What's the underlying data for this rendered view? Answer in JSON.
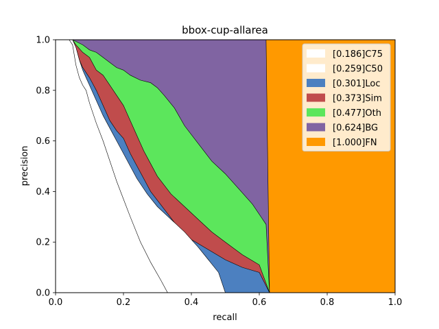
{
  "chart_data": {
    "type": "area",
    "title": "bbox-cup-allarea",
    "xlabel": "recall",
    "ylabel": "precision",
    "xlim": [
      0,
      1
    ],
    "ylim": [
      0,
      1
    ],
    "xticks": [
      "0.0",
      "0.2",
      "0.4",
      "0.6",
      "0.8",
      "1.0"
    ],
    "yticks": [
      "0.0",
      "0.2",
      "0.4",
      "0.6",
      "0.8",
      "1.0"
    ],
    "grid": false,
    "legend_position": "top-right",
    "series": [
      {
        "name": "[0.186]C75",
        "color": "#ffffff",
        "points": [
          [
            0.0,
            1.0
          ],
          [
            0.04,
            1.0
          ],
          [
            0.05,
            0.98
          ],
          [
            0.06,
            0.9
          ],
          [
            0.07,
            0.85
          ],
          [
            0.08,
            0.82
          ],
          [
            0.09,
            0.8
          ],
          [
            0.1,
            0.75
          ],
          [
            0.12,
            0.67
          ],
          [
            0.14,
            0.6
          ],
          [
            0.16,
            0.52
          ],
          [
            0.18,
            0.44
          ],
          [
            0.2,
            0.37
          ],
          [
            0.22,
            0.3
          ],
          [
            0.25,
            0.2
          ],
          [
            0.28,
            0.12
          ],
          [
            0.31,
            0.05
          ],
          [
            0.33,
            0.0
          ]
        ]
      },
      {
        "name": "[0.259]C50",
        "color": "#ffffff",
        "points": [
          [
            0.0,
            1.0
          ],
          [
            0.05,
            1.0
          ],
          [
            0.06,
            0.97
          ],
          [
            0.07,
            0.92
          ],
          [
            0.08,
            0.88
          ],
          [
            0.09,
            0.85
          ],
          [
            0.1,
            0.82
          ],
          [
            0.12,
            0.76
          ],
          [
            0.14,
            0.7
          ],
          [
            0.16,
            0.65
          ],
          [
            0.18,
            0.6
          ],
          [
            0.2,
            0.55
          ],
          [
            0.22,
            0.5
          ],
          [
            0.24,
            0.45
          ],
          [
            0.27,
            0.39
          ],
          [
            0.3,
            0.34
          ],
          [
            0.34,
            0.29
          ],
          [
            0.38,
            0.24
          ],
          [
            0.42,
            0.18
          ],
          [
            0.45,
            0.13
          ],
          [
            0.48,
            0.08
          ],
          [
            0.5,
            0.0
          ]
        ]
      },
      {
        "name": "[0.301]Loc",
        "color": "#4c80c0",
        "points": [
          [
            0.0,
            1.0
          ],
          [
            0.05,
            1.0
          ],
          [
            0.06,
            0.97
          ],
          [
            0.07,
            0.92
          ],
          [
            0.08,
            0.89
          ],
          [
            0.1,
            0.85
          ],
          [
            0.12,
            0.8
          ],
          [
            0.14,
            0.74
          ],
          [
            0.16,
            0.68
          ],
          [
            0.18,
            0.64
          ],
          [
            0.2,
            0.61
          ],
          [
            0.22,
            0.55
          ],
          [
            0.24,
            0.5
          ],
          [
            0.26,
            0.45
          ],
          [
            0.28,
            0.4
          ],
          [
            0.32,
            0.33
          ],
          [
            0.36,
            0.26
          ],
          [
            0.4,
            0.21
          ],
          [
            0.45,
            0.17
          ],
          [
            0.5,
            0.13
          ],
          [
            0.55,
            0.1
          ],
          [
            0.6,
            0.08
          ],
          [
            0.63,
            0.0
          ]
        ]
      },
      {
        "name": "[0.373]Sim",
        "color": "#c04c4c",
        "points": [
          [
            0.0,
            1.0
          ],
          [
            0.05,
            1.0
          ],
          [
            0.06,
            0.98
          ],
          [
            0.08,
            0.95
          ],
          [
            0.1,
            0.93
          ],
          [
            0.12,
            0.88
          ],
          [
            0.14,
            0.86
          ],
          [
            0.16,
            0.82
          ],
          [
            0.18,
            0.78
          ],
          [
            0.2,
            0.74
          ],
          [
            0.22,
            0.68
          ],
          [
            0.24,
            0.62
          ],
          [
            0.26,
            0.56
          ],
          [
            0.28,
            0.51
          ],
          [
            0.3,
            0.46
          ],
          [
            0.34,
            0.39
          ],
          [
            0.38,
            0.34
          ],
          [
            0.42,
            0.29
          ],
          [
            0.46,
            0.24
          ],
          [
            0.5,
            0.2
          ],
          [
            0.55,
            0.15
          ],
          [
            0.6,
            0.11
          ],
          [
            0.63,
            0.0
          ]
        ]
      },
      {
        "name": "[0.477]Oth",
        "color": "#5ce65c",
        "points": [
          [
            0.0,
            1.0
          ],
          [
            0.05,
            1.0
          ],
          [
            0.08,
            0.98
          ],
          [
            0.1,
            0.96
          ],
          [
            0.12,
            0.95
          ],
          [
            0.14,
            0.93
          ],
          [
            0.16,
            0.91
          ],
          [
            0.18,
            0.89
          ],
          [
            0.2,
            0.88
          ],
          [
            0.22,
            0.86
          ],
          [
            0.25,
            0.84
          ],
          [
            0.28,
            0.83
          ],
          [
            0.3,
            0.81
          ],
          [
            0.32,
            0.78
          ],
          [
            0.35,
            0.73
          ],
          [
            0.38,
            0.66
          ],
          [
            0.42,
            0.59
          ],
          [
            0.46,
            0.52
          ],
          [
            0.5,
            0.47
          ],
          [
            0.54,
            0.41
          ],
          [
            0.58,
            0.35
          ],
          [
            0.62,
            0.27
          ],
          [
            0.63,
            0.0
          ]
        ]
      },
      {
        "name": "[0.624]BG",
        "color": "#8064a2",
        "points": [
          [
            0.0,
            1.0
          ],
          [
            0.62,
            1.0
          ],
          [
            0.63,
            0.0
          ]
        ]
      },
      {
        "name": "[1.000]FN",
        "color": "#ff9900",
        "points": [
          [
            0.0,
            1.0
          ],
          [
            1.0,
            1.0
          ],
          [
            1.0,
            0.0
          ]
        ]
      }
    ]
  }
}
